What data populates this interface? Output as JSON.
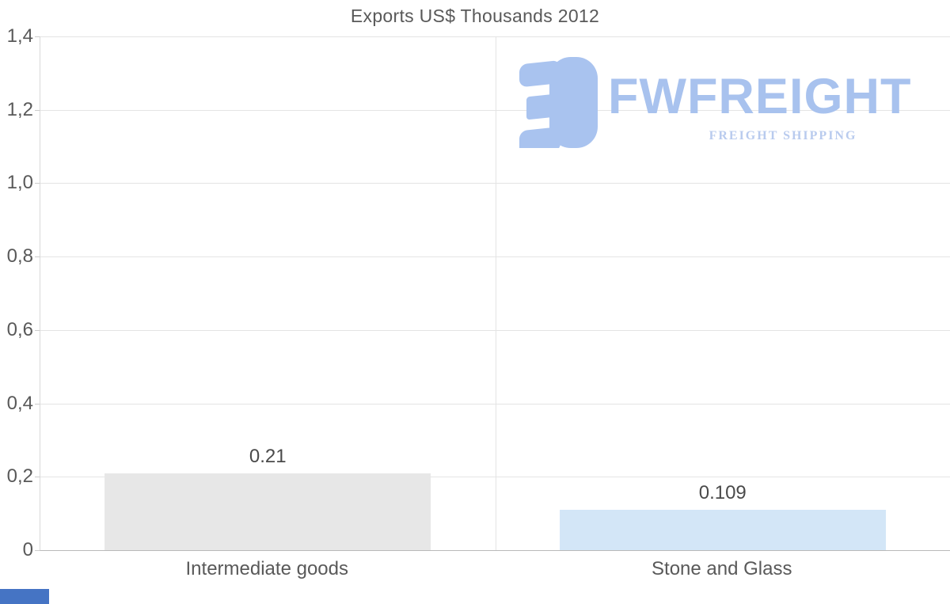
{
  "title": "Exports US$ Thousands 2012",
  "logo": {
    "wordmark": "FWFREIGHT",
    "tagline": "FREIGHT SHIPPING",
    "icon_color": "#a9c3ef",
    "wordmark_color": "#a8c2ee",
    "tagline_color": "#b9cbee"
  },
  "chart_data": {
    "type": "bar",
    "title": "Exports US$ Thousands 2012",
    "categories": [
      "Intermediate goods",
      "Stone and Glass"
    ],
    "values": [
      0.21,
      0.109
    ],
    "value_labels": [
      "0.21",
      "0.109"
    ],
    "bar_colors": [
      "#e7e7e7",
      "#d3e6f7"
    ],
    "xlabel": "",
    "ylabel": "",
    "ylim": [
      0,
      1.4
    ],
    "yticks": [
      {
        "value": 0.0,
        "label": "0"
      },
      {
        "value": 0.2,
        "label": "0,2"
      },
      {
        "value": 0.4,
        "label": "0,4"
      },
      {
        "value": 0.6,
        "label": "0,6"
      },
      {
        "value": 0.8,
        "label": "0,8"
      },
      {
        "value": 1.0,
        "label": "1,0"
      },
      {
        "value": 1.2,
        "label": "1,2"
      },
      {
        "value": 1.4,
        "label": "1,4"
      }
    ],
    "grid": true,
    "legend_position": "none",
    "decimal_style_axis": "comma",
    "decimal_style_labels": "period"
  },
  "corner_fragment": {
    "color": "#4574c4"
  }
}
